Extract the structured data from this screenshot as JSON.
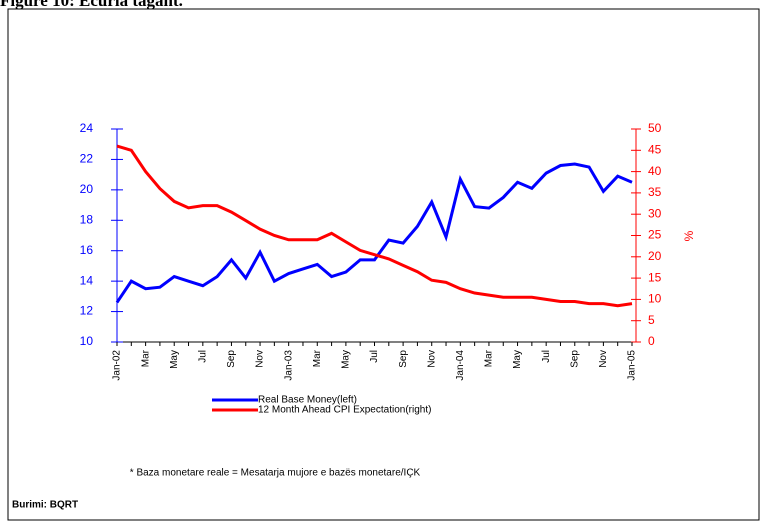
{
  "chart_data": {
    "type": "line",
    "title": "Figure 10: Ecuria tagant.",
    "categories": [
      "Jan-02",
      null,
      "Mar",
      null,
      "May",
      null,
      "Jul",
      null,
      "Sep",
      null,
      "Nov",
      null,
      "Jan-03",
      null,
      "Mar",
      null,
      "May",
      null,
      "Jul",
      null,
      "Sep",
      null,
      "Nov",
      null,
      "Jan-04",
      null,
      "Mar",
      null,
      "May",
      null,
      "Jul",
      null,
      "Sep",
      null,
      "Nov",
      null,
      "Jan-05"
    ],
    "series": [
      {
        "name": "Real Base Money(left)",
        "color": "#0000ff",
        "axis": "y",
        "values": [
          12.6,
          14.0,
          13.5,
          13.6,
          14.3,
          14.0,
          13.7,
          14.3,
          15.4,
          14.2,
          15.9,
          14.0,
          14.5,
          14.8,
          15.1,
          14.3,
          14.6,
          15.4,
          15.4,
          16.7,
          16.5,
          17.6,
          19.2,
          16.9,
          20.7,
          18.9,
          18.8,
          19.5,
          20.5,
          20.1,
          21.1,
          21.6,
          21.7,
          21.5,
          19.9,
          20.9,
          20.5
        ]
      },
      {
        "name": "12 Month Ahead CPI Expectation(right)",
        "color": "#ff0000",
        "axis": "y2",
        "values": [
          46,
          45,
          40,
          36,
          33,
          31.5,
          32,
          32,
          30.5,
          28.5,
          26.5,
          25,
          24,
          24,
          24,
          25.5,
          23.5,
          21.5,
          20.5,
          19.5,
          18,
          16.5,
          14.5,
          14,
          12.5,
          11.5,
          11,
          10.5,
          10.5,
          10.5,
          10,
          9.5,
          9.5,
          9,
          9,
          8.5,
          9
        ]
      }
    ],
    "ylim": [
      10,
      24
    ],
    "yticks": [
      10,
      12,
      14,
      16,
      18,
      20,
      22,
      24
    ],
    "y2lim": [
      0,
      50
    ],
    "y2ticks": [
      0,
      5,
      10,
      15,
      20,
      25,
      30,
      35,
      40,
      45,
      50
    ],
    "y2label": "%",
    "y2color": "#ff0000",
    "ycolor": "#0000ff",
    "footnote": "* Baza monetare reale = Mesatarja mujore e bazës monetare/IÇK",
    "source": "Burimi: BQRT"
  }
}
